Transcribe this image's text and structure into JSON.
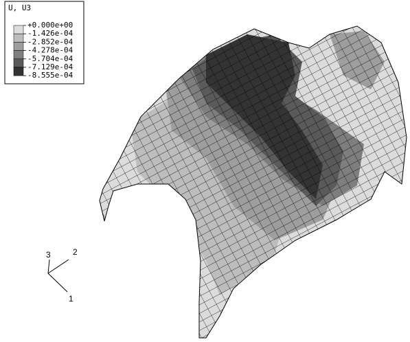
{
  "legend": {
    "title": "U, U3",
    "labels": [
      "+0.000e+00",
      "-1.426e-04",
      "-2.852e-04",
      "-4.278e-04",
      "-5.704e-04",
      "-7.129e-04",
      "-8.555e-04"
    ],
    "colors": [
      "#dcdcdc",
      "#bdbdbd",
      "#9e9e9e",
      "#7e7e7e",
      "#5a5a5a",
      "#333333"
    ]
  },
  "triad": {
    "axis1": "1",
    "axis2": "2",
    "axis3": "3"
  }
}
